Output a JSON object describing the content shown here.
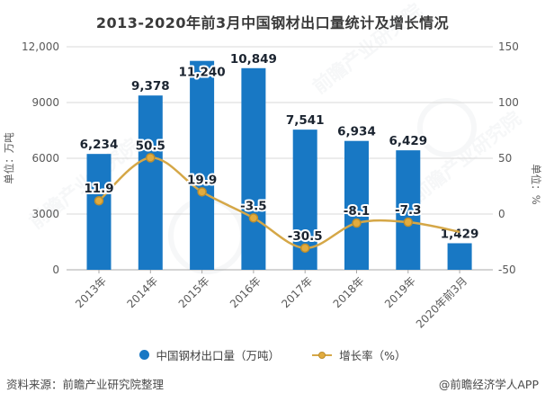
{
  "title": "2013-2020年前3月中国钢材出口量统计及增长情况",
  "chart_data": {
    "type": "bar+line",
    "categories": [
      "2013年",
      "2014年",
      "2015年",
      "2016年",
      "2017年",
      "2018年",
      "2019年",
      "2020年前3月"
    ],
    "series": [
      {
        "name": "中国钢材出口量（万吨）",
        "type": "bar",
        "axis": "left",
        "values": [
          6234,
          9378,
          11240,
          10849,
          7541,
          6934,
          6429,
          1429
        ],
        "labels": [
          "6,234",
          "9,378",
          "11,240",
          "10,849",
          "7,541",
          "6,934",
          "6,429",
          "1,429"
        ],
        "color": "#1878C4"
      },
      {
        "name": "增长率（%）",
        "type": "line",
        "axis": "right",
        "values": [
          11.9,
          50.5,
          19.9,
          -3.5,
          -30.5,
          -8.1,
          -7.3,
          -16
        ],
        "labels": [
          "11.9",
          "50.5",
          "19.9",
          "-3.5",
          "-30.5",
          "-8.1",
          "-7.3",
          ""
        ],
        "color": "#D5A747",
        "marker_fill": "#E2AC3F",
        "marker_stroke": "#BD8E2E"
      }
    ],
    "left_axis": {
      "title": "单位：万吨",
      "min": 0,
      "max": 12000,
      "ticks": [
        "12,000",
        "9000",
        "6000",
        "3000",
        "0"
      ]
    },
    "right_axis": {
      "title": "单位：%",
      "min": -50,
      "max": 150,
      "ticks": [
        "150",
        "100",
        "50",
        "0",
        "-50"
      ]
    },
    "grid": true,
    "legend_position": "bottom",
    "bar_label_inside_indices": [
      2
    ],
    "label_color": "#1b2430",
    "axis_text_color": "#595959",
    "grid_color": "#d9d9d9",
    "baseline_color": "#a8a8a8"
  },
  "legend": {
    "items": [
      {
        "label": "中国钢材出口量（万吨）",
        "marker": "circle",
        "color": "#1878C4"
      },
      {
        "label": "增长率（%）",
        "marker": "line-dot",
        "color": "#D5A747"
      }
    ]
  },
  "footer": {
    "source": "资料来源：前瞻产业研究院整理",
    "credit": "@前瞻经济学人APP"
  },
  "watermark": {
    "text": "前瞻产业研究院"
  }
}
